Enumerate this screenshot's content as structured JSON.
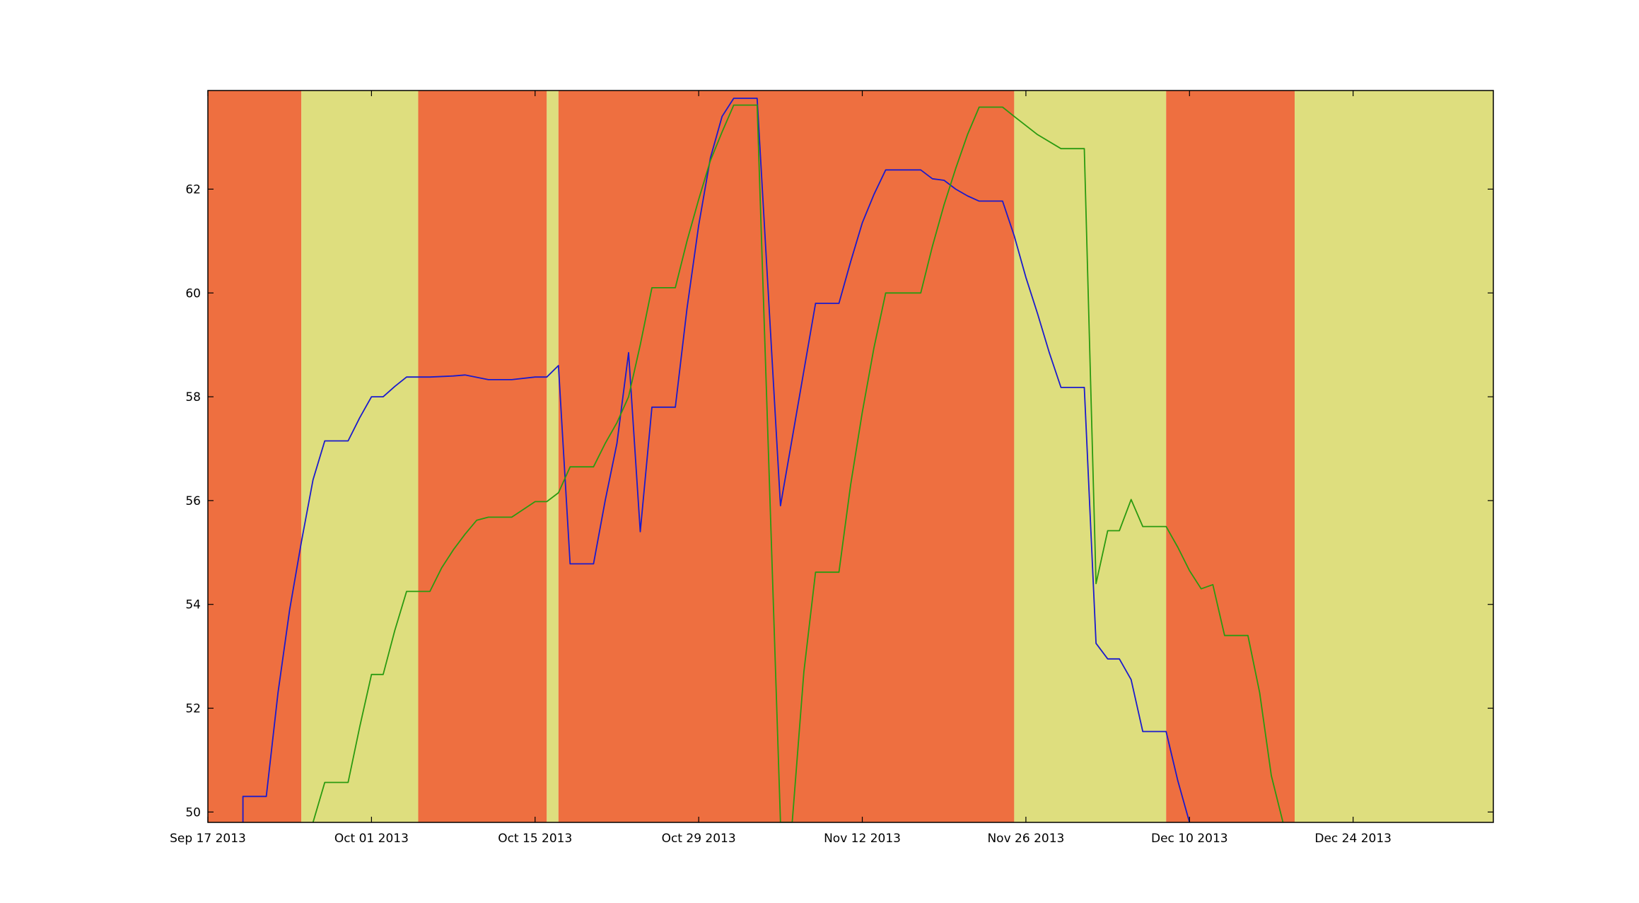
{
  "chart_data": {
    "type": "line",
    "title": "",
    "xlabel": "",
    "ylabel": "",
    "x_axis": {
      "type": "date",
      "range": [
        "2013-09-17",
        "2014-01-05"
      ],
      "ticks": [
        {
          "date": "2013-09-17",
          "label": "Sep 17 2013"
        },
        {
          "date": "2013-10-01",
          "label": "Oct 01 2013"
        },
        {
          "date": "2013-10-15",
          "label": "Oct 15 2013"
        },
        {
          "date": "2013-10-29",
          "label": "Oct 29 2013"
        },
        {
          "date": "2013-11-12",
          "label": "Nov 12 2013"
        },
        {
          "date": "2013-11-26",
          "label": "Nov 26 2013"
        },
        {
          "date": "2013-12-10",
          "label": "Dec 10 2013"
        },
        {
          "date": "2013-12-24",
          "label": "Dec 24 2013"
        }
      ]
    },
    "y_axis": {
      "range": [
        49.8,
        63.9
      ],
      "ticks": [
        50,
        52,
        54,
        56,
        58,
        60,
        62
      ],
      "tick_labels": [
        "50",
        "52",
        "54",
        "56",
        "58",
        "60",
        "62"
      ]
    },
    "grid": false,
    "legend": "none",
    "background_bands": [
      {
        "start": "2013-09-17",
        "end": "2013-09-25",
        "color": "#ee6f40"
      },
      {
        "start": "2013-09-25",
        "end": "2013-10-05",
        "color": "#dede7e"
      },
      {
        "start": "2013-10-05",
        "end": "2013-10-16",
        "color": "#ee6f40"
      },
      {
        "start": "2013-10-16",
        "end": "2013-10-17",
        "color": "#dede7e"
      },
      {
        "start": "2013-10-17",
        "end": "2013-11-25",
        "color": "#ee6f40"
      },
      {
        "start": "2013-11-25",
        "end": "2013-12-08",
        "color": "#dede7e"
      },
      {
        "start": "2013-12-08",
        "end": "2013-12-19",
        "color": "#ee6f40"
      },
      {
        "start": "2013-12-19",
        "end": "2014-01-05",
        "color": "#dede7e"
      }
    ],
    "series": [
      {
        "color": "#1a1acd",
        "points": [
          [
            "2013-09-20",
            49.8
          ],
          [
            "2013-09-20",
            50.3
          ],
          [
            "2013-09-22",
            50.3
          ],
          [
            "2013-09-23",
            52.3
          ],
          [
            "2013-09-24",
            53.9
          ],
          [
            "2013-09-25",
            55.2
          ],
          [
            "2013-09-26",
            56.4
          ],
          [
            "2013-09-27",
            57.15
          ],
          [
            "2013-09-29",
            57.15
          ],
          [
            "2013-09-30",
            57.6
          ],
          [
            "2013-10-01",
            58.0
          ],
          [
            "2013-10-02",
            58.0
          ],
          [
            "2013-10-03",
            58.2
          ],
          [
            "2013-10-04",
            58.38
          ],
          [
            "2013-10-06",
            58.38
          ],
          [
            "2013-10-08",
            58.4
          ],
          [
            "2013-10-09",
            58.42
          ],
          [
            "2013-10-11",
            58.33
          ],
          [
            "2013-10-13",
            58.33
          ],
          [
            "2013-10-15",
            58.38
          ],
          [
            "2013-10-16",
            58.38
          ],
          [
            "2013-10-17",
            58.6
          ],
          [
            "2013-10-18",
            54.78
          ],
          [
            "2013-10-20",
            54.78
          ],
          [
            "2013-10-21",
            56.0
          ],
          [
            "2013-10-22",
            57.1
          ],
          [
            "2013-10-23",
            58.85
          ],
          [
            "2013-10-24",
            55.4
          ],
          [
            "2013-10-25",
            57.8
          ],
          [
            "2013-10-27",
            57.8
          ],
          [
            "2013-10-28",
            59.7
          ],
          [
            "2013-10-29",
            61.3
          ],
          [
            "2013-10-30",
            62.6
          ],
          [
            "2013-10-31",
            63.4
          ],
          [
            "2013-11-01",
            63.75
          ],
          [
            "2013-11-03",
            63.75
          ],
          [
            "2013-11-05",
            55.9
          ],
          [
            "2013-11-06",
            57.2
          ],
          [
            "2013-11-07",
            58.5
          ],
          [
            "2013-11-08",
            59.8
          ],
          [
            "2013-11-10",
            59.8
          ],
          [
            "2013-11-11",
            60.6
          ],
          [
            "2013-11-12",
            61.35
          ],
          [
            "2013-11-13",
            61.9
          ],
          [
            "2013-11-14",
            62.37
          ],
          [
            "2013-11-17",
            62.37
          ],
          [
            "2013-11-18",
            62.2
          ],
          [
            "2013-11-19",
            62.17
          ],
          [
            "2013-11-20",
            62.0
          ],
          [
            "2013-11-21",
            61.87
          ],
          [
            "2013-11-22",
            61.77
          ],
          [
            "2013-11-24",
            61.77
          ],
          [
            "2013-11-25",
            61.1
          ],
          [
            "2013-11-26",
            60.3
          ],
          [
            "2013-11-27",
            59.6
          ],
          [
            "2013-11-28",
            58.85
          ],
          [
            "2013-11-29",
            58.18
          ],
          [
            "2013-12-01",
            58.18
          ],
          [
            "2013-12-02",
            53.25
          ],
          [
            "2013-12-03",
            52.95
          ],
          [
            "2013-12-04",
            52.95
          ],
          [
            "2013-12-05",
            52.55
          ],
          [
            "2013-12-06",
            51.55
          ],
          [
            "2013-12-08",
            51.55
          ],
          [
            "2013-12-09",
            50.6
          ],
          [
            "2013-12-10",
            49.8
          ]
        ]
      },
      {
        "color": "#2a9a10",
        "points": [
          [
            "2013-09-26",
            49.8
          ],
          [
            "2013-09-27",
            50.57
          ],
          [
            "2013-09-29",
            50.57
          ],
          [
            "2013-09-30",
            51.65
          ],
          [
            "2013-10-01",
            52.65
          ],
          [
            "2013-10-02",
            52.65
          ],
          [
            "2013-10-03",
            53.5
          ],
          [
            "2013-10-04",
            54.25
          ],
          [
            "2013-10-06",
            54.25
          ],
          [
            "2013-10-07",
            54.7
          ],
          [
            "2013-10-08",
            55.05
          ],
          [
            "2013-10-09",
            55.35
          ],
          [
            "2013-10-10",
            55.62
          ],
          [
            "2013-10-11",
            55.68
          ],
          [
            "2013-10-13",
            55.68
          ],
          [
            "2013-10-15",
            55.98
          ],
          [
            "2013-10-16",
            55.98
          ],
          [
            "2013-10-17",
            56.15
          ],
          [
            "2013-10-18",
            56.65
          ],
          [
            "2013-10-20",
            56.65
          ],
          [
            "2013-10-21",
            57.1
          ],
          [
            "2013-10-22",
            57.5
          ],
          [
            "2013-10-23",
            58.0
          ],
          [
            "2013-10-24",
            59.0
          ],
          [
            "2013-10-25",
            60.1
          ],
          [
            "2013-10-27",
            60.1
          ],
          [
            "2013-10-28",
            61.0
          ],
          [
            "2013-10-29",
            61.8
          ],
          [
            "2013-10-30",
            62.55
          ],
          [
            "2013-10-31",
            63.1
          ],
          [
            "2013-11-01",
            63.62
          ],
          [
            "2013-11-03",
            63.62
          ],
          [
            "2013-11-05",
            49.8
          ],
          [
            "2013-11-06",
            49.8
          ],
          [
            "2013-11-07",
            52.7
          ],
          [
            "2013-11-08",
            54.62
          ],
          [
            "2013-11-10",
            54.62
          ],
          [
            "2013-11-11",
            56.3
          ],
          [
            "2013-11-12",
            57.7
          ],
          [
            "2013-11-13",
            58.95
          ],
          [
            "2013-11-14",
            60.0
          ],
          [
            "2013-11-17",
            60.0
          ],
          [
            "2013-11-18",
            60.9
          ],
          [
            "2013-11-19",
            61.7
          ],
          [
            "2013-11-20",
            62.4
          ],
          [
            "2013-11-21",
            63.05
          ],
          [
            "2013-11-22",
            63.58
          ],
          [
            "2013-11-24",
            63.58
          ],
          [
            "2013-11-25",
            63.4
          ],
          [
            "2013-11-27",
            63.05
          ],
          [
            "2013-11-29",
            62.78
          ],
          [
            "2013-12-01",
            62.78
          ],
          [
            "2013-12-02",
            54.4
          ],
          [
            "2013-12-03",
            55.42
          ],
          [
            "2013-12-04",
            55.42
          ],
          [
            "2013-12-05",
            56.02
          ],
          [
            "2013-12-06",
            55.5
          ],
          [
            "2013-12-08",
            55.5
          ],
          [
            "2013-12-09",
            55.1
          ],
          [
            "2013-12-10",
            54.65
          ],
          [
            "2013-12-11",
            54.3
          ],
          [
            "2013-12-12",
            54.38
          ],
          [
            "2013-12-13",
            53.4
          ],
          [
            "2013-12-15",
            53.4
          ],
          [
            "2013-12-16",
            52.3
          ],
          [
            "2013-12-17",
            50.7
          ],
          [
            "2013-12-18",
            49.8
          ]
        ]
      }
    ]
  }
}
